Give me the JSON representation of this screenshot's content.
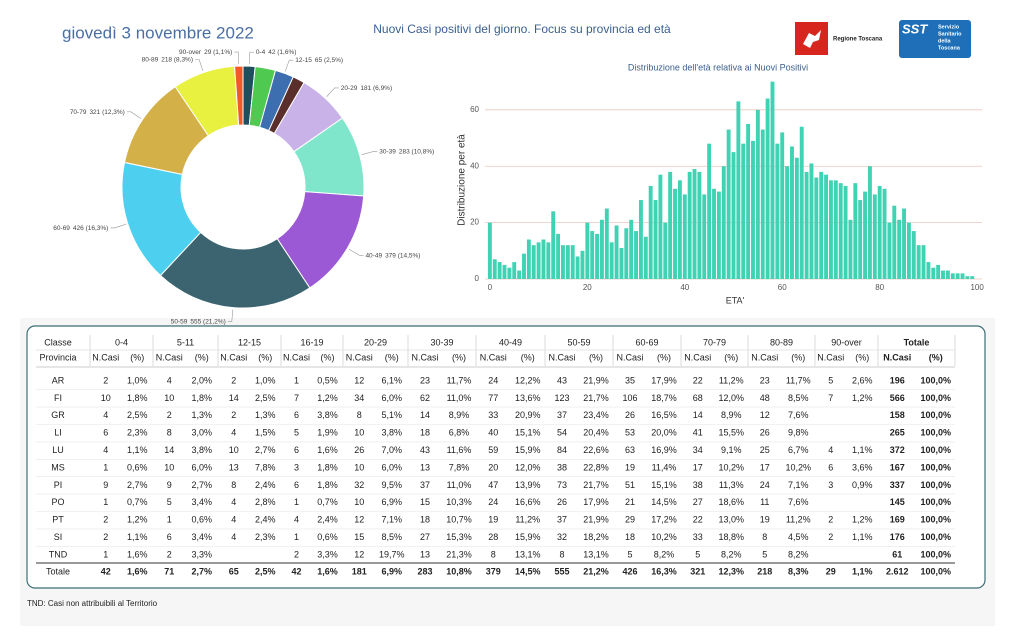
{
  "header": {
    "date": "giovedì 3 novembre 2022",
    "title": "Nuovi Casi positivi del giorno. Focus su provincia ed età"
  },
  "logos": {
    "region": "Regione Toscana",
    "sst": "SST",
    "sst_name": [
      "Servizio",
      "Sanitario",
      "della",
      "Toscana"
    ]
  },
  "chart_data": [
    {
      "type": "donut",
      "categories": [
        "0-4",
        "5-11",
        "12-15",
        "16-19",
        "20-29",
        "30-39",
        "40-49",
        "50-59",
        "60-69",
        "70-79",
        "80-89",
        "90-over"
      ],
      "values": [
        42,
        71,
        65,
        42,
        181,
        283,
        379,
        555,
        426,
        321,
        218,
        29
      ],
      "value_labels": [
        "42 (1,6%)",
        null,
        "65 (2,5%)",
        null,
        "181 (6,9%)",
        "283 (10,8%)",
        "379 (14,5%)",
        "555 (21,2%)",
        "426 (16,3%)",
        "321 (12,3%)",
        "218 (8,3%)",
        "29 (1,1%)"
      ],
      "colors": [
        "#1f4e5f",
        "#4fc94f",
        "#3d6fb0",
        "#5a2e2a",
        "#c9b2e8",
        "#7fe6cc",
        "#9b59d6",
        "#3c6470",
        "#4dd0f0",
        "#d4b048",
        "#e8f040",
        "#f05a28"
      ]
    },
    {
      "type": "bar",
      "title": "Distribuzione dell'età relativa ai Nuovi Positivi",
      "xlabel": "ETA'",
      "ylabel": "Distribuzione per età",
      "x": [
        0,
        1,
        2,
        3,
        4,
        5,
        6,
        7,
        8,
        9,
        10,
        11,
        12,
        13,
        14,
        15,
        16,
        17,
        18,
        19,
        20,
        21,
        22,
        23,
        24,
        25,
        26,
        27,
        28,
        29,
        30,
        31,
        32,
        33,
        34,
        35,
        36,
        37,
        38,
        39,
        40,
        41,
        42,
        43,
        44,
        45,
        46,
        47,
        48,
        49,
        50,
        51,
        52,
        53,
        54,
        55,
        56,
        57,
        58,
        59,
        60,
        61,
        62,
        63,
        64,
        65,
        66,
        67,
        68,
        69,
        70,
        71,
        72,
        73,
        74,
        75,
        76,
        77,
        78,
        79,
        80,
        81,
        82,
        83,
        84,
        85,
        86,
        87,
        88,
        89,
        90,
        91,
        92,
        93,
        94,
        95,
        96,
        97,
        98,
        99
      ],
      "values": [
        20,
        7,
        6,
        5,
        4,
        6,
        3,
        9,
        14,
        12,
        13,
        14,
        13,
        24,
        16,
        12,
        12,
        12,
        8,
        10,
        20,
        17,
        16,
        21,
        25,
        13,
        19,
        11,
        18,
        21,
        17,
        28,
        15,
        33,
        28,
        37,
        20,
        38,
        32,
        35,
        30,
        38,
        39,
        38,
        30,
        48,
        32,
        31,
        40,
        53,
        45,
        63,
        48,
        55,
        49,
        60,
        53,
        64,
        70,
        48,
        52,
        40,
        47,
        43,
        54,
        38,
        41,
        36,
        38,
        37,
        35,
        35,
        34,
        33,
        21,
        34,
        28,
        31,
        40,
        30,
        33,
        32,
        20,
        26,
        21,
        25,
        20,
        17,
        12,
        12,
        6,
        4,
        5,
        3,
        3,
        2,
        2,
        2,
        1,
        1
      ],
      "color": "#3fd3b4",
      "xlim": [
        -1,
        101
      ],
      "ylim": [
        0,
        72
      ],
      "xticks": [
        0,
        20,
        40,
        60,
        80,
        100
      ],
      "yticks": [
        0,
        20,
        40,
        60
      ],
      "grid": true
    }
  ],
  "table": {
    "corner": "Classe",
    "groups": [
      "0-4",
      "5-11",
      "12-15",
      "16-19",
      "20-29",
      "30-39",
      "40-49",
      "50-59",
      "60-69",
      "70-79",
      "80-89",
      "90-over",
      "Totale"
    ],
    "sub_header": [
      "Provincia",
      "N.Casi",
      "(%)",
      "N.Casi",
      "(%)",
      "N.Casi",
      "(%)",
      "N.Casi",
      "(%)",
      "N.Casi",
      "(%)",
      "N.Casi",
      "(%)",
      "N.Casi",
      "(%)",
      "N.Casi",
      "(%)",
      "N.Casi",
      "(%)",
      "N.Casi",
      "(%)",
      "N.Casi",
      "(%)",
      "N.Casi",
      "(%)",
      "N.Casi",
      "(%)"
    ],
    "rows": [
      [
        "AR",
        "2",
        "1,0%",
        "4",
        "2,0%",
        "2",
        "1,0%",
        "1",
        "0,5%",
        "12",
        "6,1%",
        "23",
        "11,7%",
        "24",
        "12,2%",
        "43",
        "21,9%",
        "35",
        "17,9%",
        "22",
        "11,2%",
        "23",
        "11,7%",
        "5",
        "2,6%",
        "196",
        "100,0%"
      ],
      [
        "FI",
        "10",
        "1,8%",
        "10",
        "1,8%",
        "14",
        "2,5%",
        "7",
        "1,2%",
        "34",
        "6,0%",
        "62",
        "11,0%",
        "77",
        "13,6%",
        "123",
        "21,7%",
        "106",
        "18,7%",
        "68",
        "12,0%",
        "48",
        "8,5%",
        "7",
        "1,2%",
        "566",
        "100,0%"
      ],
      [
        "GR",
        "4",
        "2,5%",
        "2",
        "1,3%",
        "2",
        "1,3%",
        "6",
        "3,8%",
        "8",
        "5,1%",
        "14",
        "8,9%",
        "33",
        "20,9%",
        "37",
        "23,4%",
        "26",
        "16,5%",
        "14",
        "8,9%",
        "12",
        "7,6%",
        null,
        null,
        "158",
        "100,0%"
      ],
      [
        "LI",
        "6",
        "2,3%",
        "8",
        "3,0%",
        "4",
        "1,5%",
        "5",
        "1,9%",
        "10",
        "3,8%",
        "18",
        "6,8%",
        "40",
        "15,1%",
        "54",
        "20,4%",
        "53",
        "20,0%",
        "41",
        "15,5%",
        "26",
        "9,8%",
        null,
        null,
        "265",
        "100,0%"
      ],
      [
        "LU",
        "4",
        "1,1%",
        "14",
        "3,8%",
        "10",
        "2,7%",
        "6",
        "1,6%",
        "26",
        "7,0%",
        "43",
        "11,6%",
        "59",
        "15,9%",
        "84",
        "22,6%",
        "63",
        "16,9%",
        "34",
        "9,1%",
        "25",
        "6,7%",
        "4",
        "1,1%",
        "372",
        "100,0%"
      ],
      [
        "MS",
        "1",
        "0,6%",
        "10",
        "6,0%",
        "13",
        "7,8%",
        "3",
        "1,8%",
        "10",
        "6,0%",
        "13",
        "7,8%",
        "20",
        "12,0%",
        "38",
        "22,8%",
        "19",
        "11,4%",
        "17",
        "10,2%",
        "17",
        "10,2%",
        "6",
        "3,6%",
        "167",
        "100,0%"
      ],
      [
        "PI",
        "9",
        "2,7%",
        "9",
        "2,7%",
        "8",
        "2,4%",
        "6",
        "1,8%",
        "32",
        "9,5%",
        "37",
        "11,0%",
        "47",
        "13,9%",
        "73",
        "21,7%",
        "51",
        "15,1%",
        "38",
        "11,3%",
        "24",
        "7,1%",
        "3",
        "0,9%",
        "337",
        "100,0%"
      ],
      [
        "PO",
        "1",
        "0,7%",
        "5",
        "3,4%",
        "4",
        "2,8%",
        "1",
        "0,7%",
        "10",
        "6,9%",
        "15",
        "10,3%",
        "24",
        "16,6%",
        "26",
        "17,9%",
        "21",
        "14,5%",
        "27",
        "18,6%",
        "11",
        "7,6%",
        null,
        null,
        "145",
        "100,0%"
      ],
      [
        "PT",
        "2",
        "1,2%",
        "1",
        "0,6%",
        "4",
        "2,4%",
        "4",
        "2,4%",
        "12",
        "7,1%",
        "18",
        "10,7%",
        "19",
        "11,2%",
        "37",
        "21,9%",
        "29",
        "17,2%",
        "22",
        "13,0%",
        "19",
        "11,2%",
        "2",
        "1,2%",
        "169",
        "100,0%"
      ],
      [
        "SI",
        "2",
        "1,1%",
        "6",
        "3,4%",
        "4",
        "2,3%",
        "1",
        "0,6%",
        "15",
        "8,5%",
        "27",
        "15,3%",
        "28",
        "15,9%",
        "32",
        "18,2%",
        "18",
        "10,2%",
        "33",
        "18,8%",
        "8",
        "4,5%",
        "2",
        "1,1%",
        "176",
        "100,0%"
      ],
      [
        "TND",
        "1",
        "1,6%",
        "2",
        "3,3%",
        null,
        null,
        "2",
        "3,3%",
        "12",
        "19,7%",
        "13",
        "21,3%",
        "8",
        "13,1%",
        "8",
        "13,1%",
        "5",
        "8,2%",
        "5",
        "8,2%",
        "5",
        "8,2%",
        null,
        null,
        "61",
        "100,0%"
      ],
      [
        "Totale",
        "42",
        "1,6%",
        "71",
        "2,7%",
        "65",
        "2,5%",
        "42",
        "1,6%",
        "181",
        "6,9%",
        "283",
        "10,8%",
        "379",
        "14,5%",
        "555",
        "21,2%",
        "426",
        "16,3%",
        "321",
        "12,3%",
        "218",
        "8,3%",
        "29",
        "1,1%",
        "2.612",
        "100,0%"
      ]
    ]
  },
  "footnote": "TND: Casi non attribuibili al Territorio"
}
